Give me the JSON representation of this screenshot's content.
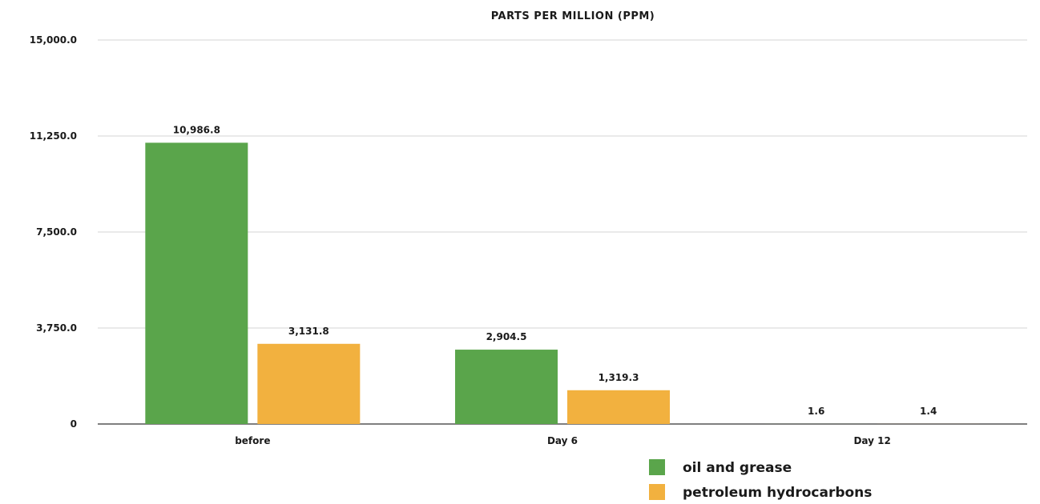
{
  "chart_data": {
    "type": "bar",
    "title": "PARTS PER MILLION (PPM)",
    "xlabel": "",
    "ylabel": "",
    "categories": [
      "before",
      "Day 6",
      "Day 12"
    ],
    "series": [
      {
        "name": "oil and grease",
        "color": "#5aa54b",
        "values": [
          10986.8,
          2904.5,
          1.6
        ],
        "labels": [
          "10,986.8",
          "2,904.5",
          "1.6"
        ]
      },
      {
        "name": "petroleum hydrocarbons",
        "color": "#f2b13f",
        "values": [
          3131.8,
          1319.3,
          1.4
        ],
        "labels": [
          "3,131.8",
          "1,319.3",
          "1.4"
        ]
      }
    ],
    "ylim": [
      0,
      15000
    ],
    "yticks": [
      0,
      3750,
      7500,
      11250,
      15000
    ],
    "ytick_labels": [
      "0",
      "3,750.0",
      "7,500.0",
      "11,250.0",
      "15,000.0"
    ],
    "grid": true,
    "legend_position": "bottom-right",
    "gridline_color": "#d4d4d4",
    "axis_color": "#555555"
  }
}
